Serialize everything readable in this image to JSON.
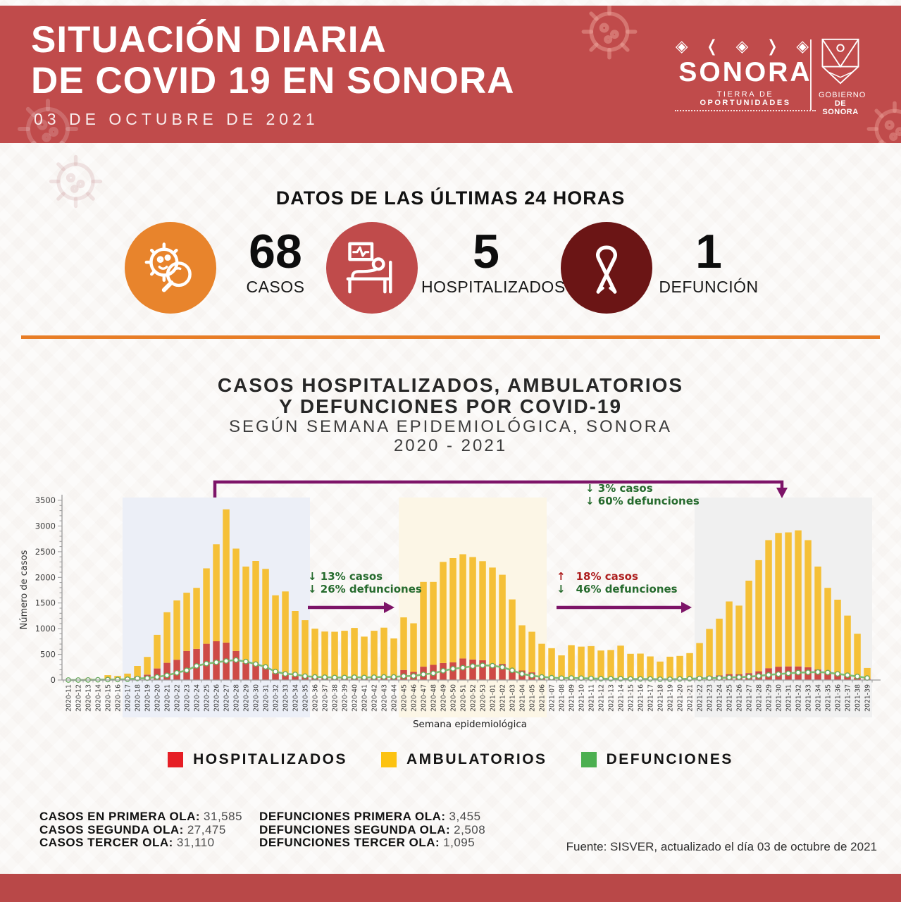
{
  "header": {
    "title_line1": "SITUACIÓN DIARIA",
    "title_line2": "DE COVID 19 EN SONORA",
    "date": "03 DE OCTUBRE DE 2021",
    "bg_color": "#c04b4b",
    "logo": {
      "deco": "◈ ❬ ◈ ❭ ◈",
      "name": "SONORA",
      "tagline_prefix": "TIERRA DE ",
      "tagline_bold": "OPORTUNIDADES",
      "gov_line1": "GOBIERNO",
      "gov_line2": "DE SONORA"
    }
  },
  "last24": {
    "title": "DATOS DE LAS ÚLTIMAS 24 HORAS",
    "stats": [
      {
        "value": "68",
        "label": "CASOS",
        "circle_color": "#e8842c",
        "icon": "virus-magnifier-icon"
      },
      {
        "value": "5",
        "label": "HOSPITALIZADOS",
        "circle_color": "#c04b4b",
        "icon": "hospital-bed-icon"
      },
      {
        "value": "1",
        "label": "DEFUNCIÓN",
        "circle_color": "#6b1515",
        "icon": "awareness-ribbon-icon"
      }
    ]
  },
  "divider_color": "#e87d26",
  "chart_section": {
    "title_line1": "CASOS HOSPITALIZADOS, AMBULATORIOS",
    "title_line2": "Y DEFUNCIONES POR COVID-19",
    "subtitle_line1": "SEGÚN SEMANA EPIDEMIOLÓGICA, SONORA",
    "subtitle_line2": "2020 - 2021"
  },
  "chart_data": {
    "type": "bar",
    "stacked": true,
    "title": "Casos hospitalizados, ambulatorios y defunciones por COVID-19 según semana epidemiológica, Sonora 2020-2021",
    "xlabel": "Semana epidemiológica",
    "ylabel": "Número de casos",
    "ylim": [
      0,
      3500
    ],
    "ytick_step": 500,
    "categories": [
      "2020-11",
      "2020-12",
      "2020-13",
      "2020-14",
      "2020-15",
      "2020-16",
      "2020-17",
      "2020-18",
      "2020-19",
      "2020-20",
      "2020-21",
      "2020-22",
      "2020-23",
      "2020-24",
      "2020-25",
      "2020-26",
      "2020-27",
      "2020-28",
      "2020-29",
      "2020-30",
      "2020-31",
      "2020-32",
      "2020-33",
      "2020-34",
      "2020-35",
      "2020-36",
      "2020-37",
      "2020-38",
      "2020-39",
      "2020-40",
      "2020-41",
      "2020-42",
      "2020-43",
      "2020-44",
      "2020-45",
      "2020-46",
      "2020-47",
      "2020-48",
      "2020-49",
      "2020-50",
      "2020-51",
      "2020-52",
      "2020-53",
      "2021-01",
      "2021-02",
      "2021-03",
      "2021-04",
      "2021-05",
      "2021-06",
      "2021-07",
      "2021-08",
      "2021-09",
      "2021-10",
      "2021-11",
      "2021-12",
      "2021-13",
      "2021-14",
      "2021-15",
      "2021-16",
      "2021-17",
      "2021-18",
      "2021-19",
      "2021-20",
      "2021-21",
      "2021-22",
      "2021-23",
      "2021-24",
      "2021-25",
      "2021-26",
      "2021-27",
      "2021-28",
      "2021-29",
      "2021-30",
      "2021-31",
      "2021-32",
      "2021-33",
      "2021-34",
      "2021-35",
      "2021-36",
      "2021-37",
      "2021-38",
      "2021-39"
    ],
    "series": [
      {
        "name": "HOSPITALIZADOS",
        "type": "bar",
        "color": "#ce4a46",
        "values": [
          0,
          2,
          5,
          5,
          15,
          15,
          30,
          65,
          105,
          225,
          335,
          395,
          565,
          605,
          705,
          755,
          730,
          565,
          330,
          320,
          250,
          135,
          100,
          80,
          65,
          55,
          50,
          45,
          50,
          55,
          60,
          65,
          70,
          75,
          195,
          160,
          260,
          295,
          330,
          345,
          420,
          400,
          385,
          310,
          315,
          205,
          185,
          150,
          80,
          55,
          45,
          45,
          40,
          40,
          35,
          35,
          35,
          30,
          30,
          30,
          25,
          30,
          35,
          40,
          55,
          70,
          90,
          115,
          115,
          135,
          170,
          230,
          260,
          265,
          265,
          250,
          205,
          170,
          130,
          80,
          45,
          25
        ]
      },
      {
        "name": "AMBULATORIOS",
        "type": "bar",
        "color": "#f5c037",
        "values": [
          2,
          3,
          25,
          5,
          80,
          65,
          95,
          210,
          345,
          655,
          985,
          1155,
          1135,
          1190,
          1470,
          1890,
          2595,
          1995,
          1880,
          2000,
          1915,
          1515,
          1625,
          1265,
          1100,
          945,
          895,
          895,
          910,
          960,
          785,
          895,
          950,
          735,
          1025,
          945,
          1650,
          1615,
          1970,
          2030,
          2030,
          1995,
          1930,
          1880,
          1735,
          1365,
          880,
          790,
          625,
          565,
          435,
          635,
          610,
          620,
          540,
          550,
          635,
          480,
          485,
          430,
          335,
          425,
          435,
          485,
          665,
          925,
          1105,
          1415,
          1335,
          1800,
          2165,
          2495,
          2605,
          2610,
          2650,
          2475,
          2005,
          1625,
          1435,
          1175,
          855,
          210
        ]
      },
      {
        "name": "DEFUNCIONES",
        "type": "line",
        "color": "#7fbe72",
        "values": [
          0,
          0,
          2,
          5,
          8,
          10,
          15,
          30,
          35,
          60,
          90,
          140,
          190,
          275,
          320,
          345,
          370,
          390,
          360,
          310,
          255,
          165,
          120,
          110,
          75,
          60,
          55,
          50,
          50,
          55,
          50,
          55,
          60,
          60,
          75,
          80,
          110,
          130,
          180,
          220,
          240,
          270,
          285,
          280,
          250,
          190,
          120,
          85,
          60,
          45,
          35,
          40,
          35,
          30,
          25,
          25,
          25,
          20,
          20,
          20,
          15,
          15,
          20,
          25,
          30,
          35,
          40,
          50,
          55,
          65,
          80,
          100,
          115,
          130,
          145,
          150,
          155,
          145,
          120,
          95,
          70,
          40
        ]
      }
    ],
    "wave_regions": [
      {
        "from": "2020-17",
        "to": "2020-35",
        "color": "#eceff7"
      },
      {
        "from": "2020-45",
        "to": "2021-06",
        "color": "#fcf6e6"
      },
      {
        "from": "2021-22",
        "to": "2021-39",
        "color": "#f0f0f0"
      }
    ],
    "annotations": [
      {
        "id": "wave1-to-wave2",
        "lines": [
          {
            "arrow": "down",
            "color": "#266b2e",
            "text": "13% casos"
          },
          {
            "arrow": "down",
            "color": "#266b2e",
            "text": "26% defunciones"
          }
        ]
      },
      {
        "id": "wave2-to-wave3",
        "lines": [
          {
            "arrow": "up",
            "color": "#ad1d1d",
            "text": "18% casos"
          },
          {
            "arrow": "down",
            "color": "#266b2e",
            "text": "46% defunciones"
          }
        ]
      },
      {
        "id": "wave1-to-wave3",
        "lines": [
          {
            "arrow": "down",
            "color": "#266b2e",
            "text": "3% casos"
          },
          {
            "arrow": "down",
            "color": "#266b2e",
            "text": "60% defunciones"
          }
        ]
      }
    ],
    "arrow_color": "#7d1468",
    "legend_position": "bottom",
    "grid": false
  },
  "legend": [
    {
      "label": "HOSPITALIZADOS",
      "color": "#e61e25"
    },
    {
      "label": "AMBULATORIOS",
      "color": "#fcc211"
    },
    {
      "label": "DEFUNCIONES",
      "color": "#4caf50"
    }
  ],
  "summary": {
    "left": [
      {
        "label": "CASOS EN PRIMERA OLA:",
        "value": "31,585"
      },
      {
        "label": "CASOS SEGUNDA OLA:",
        "value": "27,475"
      },
      {
        "label": "CASOS TERCER OLA:",
        "value": "31,110"
      }
    ],
    "right": [
      {
        "label": "DEFUNCIONES PRIMERA OLA:",
        "value": "3,455"
      },
      {
        "label": "DEFUNCIONES SEGUNDA OLA:",
        "value": "2,508"
      },
      {
        "label": "DEFUNCIONES TERCER OLA:",
        "value": "1,095"
      }
    ]
  },
  "source": "Fuente: SISVER, actualizado el día 03 de octubre de 2021",
  "footer_color": "#b94848"
}
